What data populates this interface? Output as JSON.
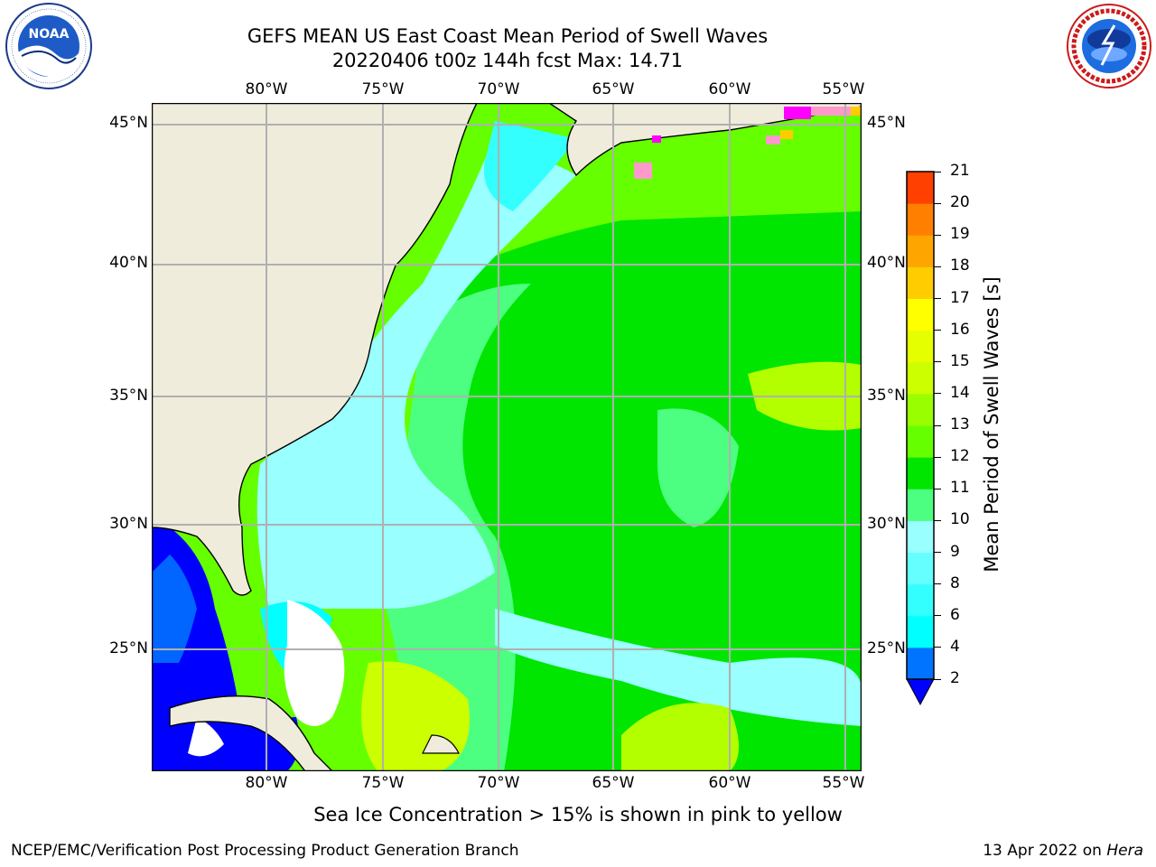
{
  "header": {
    "title_line1": "GEFS MEAN US East Coast Mean Period of Swell Waves",
    "title_line2": "20220406 t00z 144h fcst   Max: 14.71"
  },
  "logos": {
    "left_logo_text": "NOAA",
    "left_logo_ring": "NATIONAL OCEANIC AND ATMOSPHERIC ADMINISTRATION · U.S. DEPARTMENT OF COMMERCE",
    "right_logo_ring": "NATIONAL WEATHER SERVICE"
  },
  "map": {
    "lon_labels": [
      "80°W",
      "75°W",
      "70°W",
      "65°W",
      "60°W",
      "55°W"
    ],
    "lat_labels": [
      "45°N",
      "40°N",
      "35°N",
      "30°N",
      "25°N"
    ],
    "land_color": "#efecdc",
    "ocean_colors": [
      "#0000ff",
      "#0066ff",
      "#00ffff",
      "#33ffff",
      "#99ffff",
      "#4dff80",
      "#00e600",
      "#66ff00",
      "#b3ff00",
      "#ccff00",
      "#ffff00"
    ],
    "sea_ice_colors": [
      "#ff00ff",
      "#ff99cc",
      "#ffcc00"
    ]
  },
  "colorbar": {
    "title": "Mean Period of Swell Waves [s]",
    "ticks": [
      "2",
      "4",
      "6",
      "8",
      "9",
      "10",
      "11",
      "12",
      "13",
      "14",
      "15",
      "16",
      "17",
      "18",
      "19",
      "20",
      "21"
    ],
    "colors": [
      "#0073ff",
      "#00ffff",
      "#33ffff",
      "#66ffff",
      "#99ffff",
      "#4dff80",
      "#00e600",
      "#66ff00",
      "#99ff00",
      "#ccff00",
      "#e6ff00",
      "#ffff00",
      "#ffcc00",
      "#ffa500",
      "#ff7f00",
      "#ff4000",
      "#ff0000"
    ],
    "extend_color": "#0000ff"
  },
  "footer": {
    "note": "Sea Ice Concentration > 15% is shown in pink to yellow",
    "credit": "NCEP/EMC/Verification Post Processing Product Generation Branch",
    "date": "13 Apr 2022 on ",
    "machine": "Hera"
  }
}
